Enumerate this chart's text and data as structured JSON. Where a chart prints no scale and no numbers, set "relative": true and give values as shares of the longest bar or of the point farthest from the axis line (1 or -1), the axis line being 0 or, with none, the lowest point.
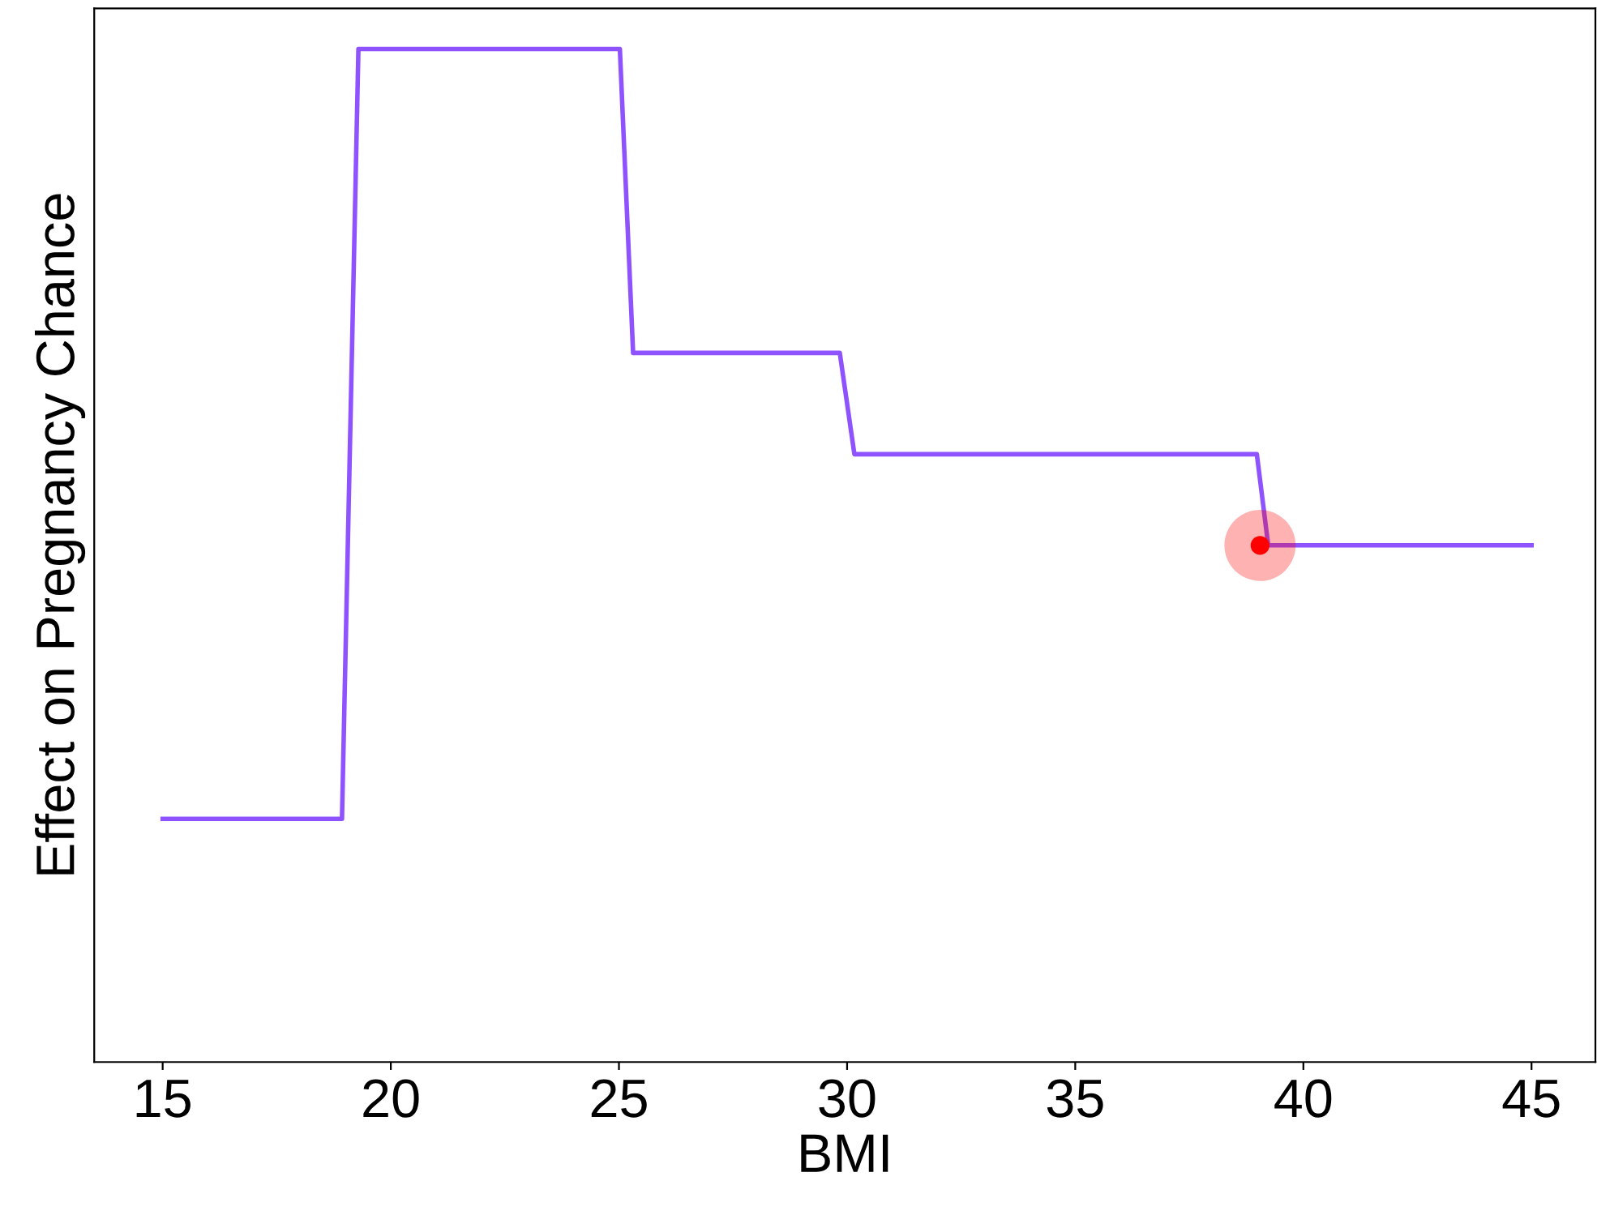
{
  "chart_data": {
    "type": "line",
    "xlabel": "BMI",
    "ylabel": "Effect on Pregnancy Chance",
    "relative": true,
    "xlim": [
      13.5,
      46.4
    ],
    "xticks": [
      15,
      20,
      25,
      30,
      35,
      40,
      45
    ],
    "grid": false,
    "series": [
      {
        "color": "#8f52ff",
        "x": [
          15,
          18.93,
          19.29,
          25.02,
          25.31,
          29.84,
          30.16,
          38.98,
          39.23,
          45.0
        ],
        "values": [
          0.24,
          0.24,
          1.0,
          1.0,
          0.7,
          0.7,
          0.6,
          0.6,
          0.51,
          0.51
        ],
        "marker": "none"
      },
      {
        "type": "scatter",
        "color": "#ff0000",
        "x": [
          39.05
        ],
        "values": [
          0.51
        ],
        "marker": "circle"
      }
    ]
  }
}
